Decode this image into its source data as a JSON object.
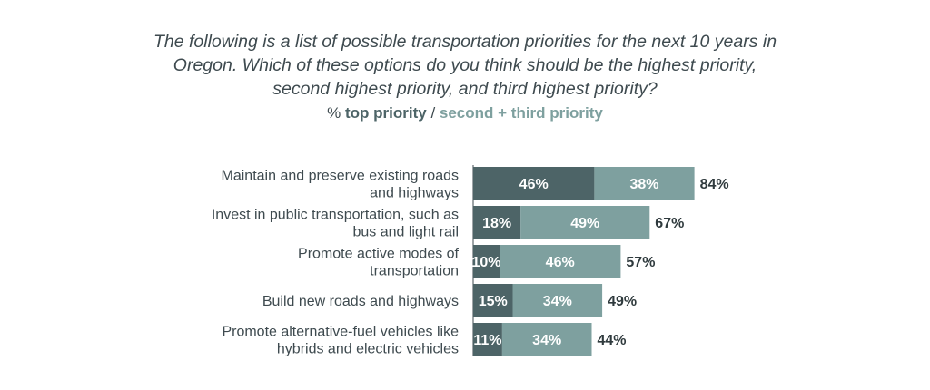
{
  "question": "The following is a list of possible transportation priorities for the next 10 years in Oregon. Which of these options do you think should be the highest priority, second highest priority, and third highest priority?",
  "legend": {
    "prefix": "% ",
    "top_label": "top priority",
    "separator": " / ",
    "second_label": "second + third priority"
  },
  "colors": {
    "top": "#4d6467",
    "second": "#7ea09f"
  },
  "chart_data": {
    "type": "bar",
    "orientation": "horizontal",
    "stacked": true,
    "categories": [
      [
        "Maintain and preserve existing roads",
        "and highways"
      ],
      [
        "Invest in public transportation, such as",
        "bus and light rail"
      ],
      [
        "Promote active modes of",
        "transportation"
      ],
      [
        "Build new roads and highways"
      ],
      [
        "Promote alternative-fuel vehicles like",
        "hybrids and electric vehicles"
      ]
    ],
    "series": [
      {
        "name": "top priority",
        "values": [
          46,
          18,
          10,
          15,
          11
        ]
      },
      {
        "name": "second + third priority",
        "values": [
          38,
          49,
          46,
          34,
          34
        ]
      }
    ],
    "totals": [
      84,
      67,
      57,
      49,
      44
    ],
    "unit": "%"
  }
}
